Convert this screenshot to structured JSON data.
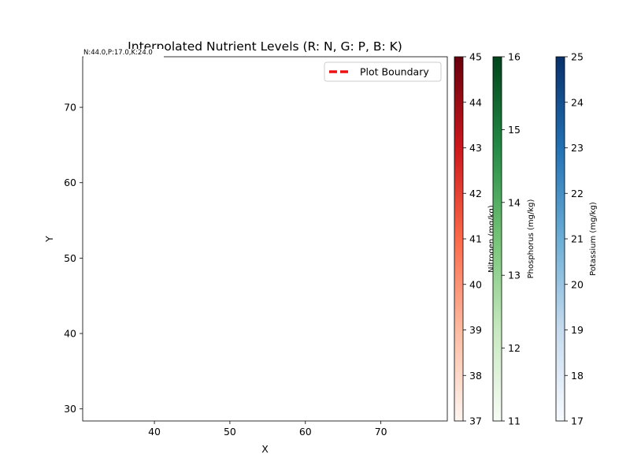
{
  "chart_data": {
    "type": "heatmap",
    "title": "Interpolated Nutrient Levels (R: N, G: P, B: K)",
    "xlabel": "X",
    "ylabel": "Y",
    "xlim": [
      30.5,
      78.8
    ],
    "ylim": [
      28.4,
      76.7
    ],
    "xticks": [
      40,
      50,
      60,
      70
    ],
    "yticks": [
      30,
      40,
      50,
      60,
      70
    ],
    "grid": false,
    "legend": {
      "placement": "upper right",
      "entries": [
        {
          "label": "Plot Boundary",
          "color": "#ee1111",
          "style": "dashed"
        }
      ]
    },
    "annotations": [
      {
        "text": "N:44.0,P:17.0,K:24.0",
        "x": 30.5,
        "y": 76.7
      }
    ],
    "colorbars": [
      {
        "label": "Nitrogen (mg/kg)",
        "cmap": "Reds",
        "min": 37,
        "max": 45,
        "ticks": [
          37,
          38,
          39,
          40,
          41,
          42,
          43,
          44,
          45
        ],
        "colors": [
          "#fff5f0",
          "#fcbba1",
          "#fb6a4a",
          "#cb181d",
          "#67000d"
        ]
      },
      {
        "label": "Phosphorus (mg/kg)",
        "cmap": "Greens",
        "min": 11,
        "max": 16,
        "ticks": [
          11,
          12,
          13,
          14,
          15,
          16
        ],
        "colors": [
          "#f7fcf5",
          "#c7e9c0",
          "#74c476",
          "#238b45",
          "#00441b"
        ]
      },
      {
        "label": "Potassium (mg/kg)",
        "cmap": "Blues",
        "min": 17,
        "max": 25,
        "ticks": [
          17,
          18,
          19,
          20,
          21,
          22,
          23,
          24,
          25
        ],
        "colors": [
          "#f7fbff",
          "#c6dbef",
          "#6baed6",
          "#2171b5",
          "#08306b"
        ]
      }
    ]
  }
}
